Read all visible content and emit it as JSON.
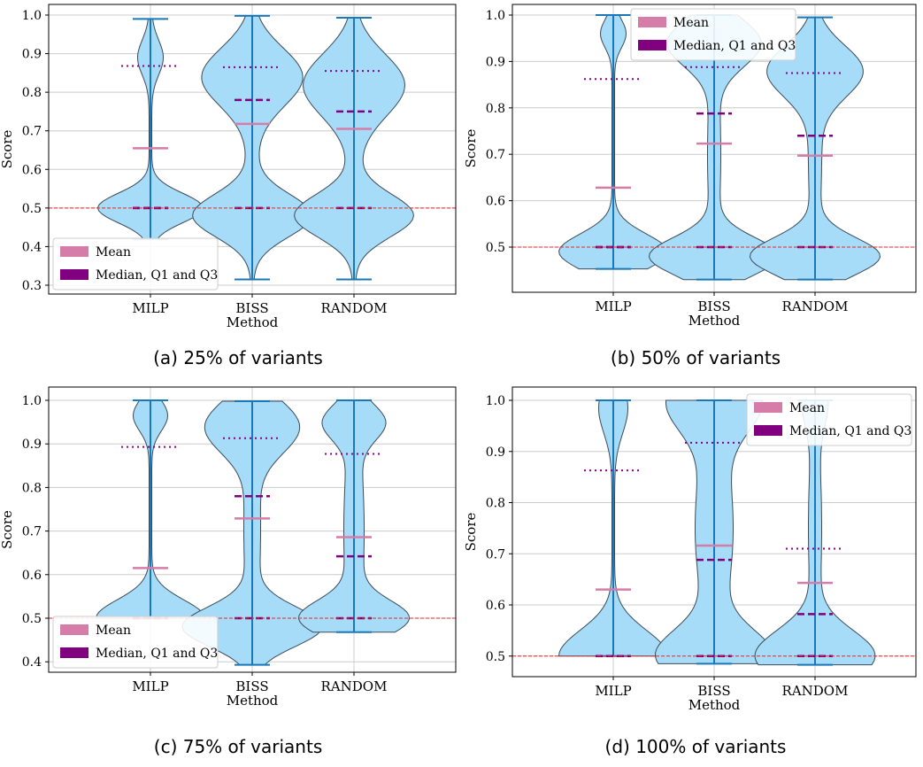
{
  "colors": {
    "violin_fill": "#a6dcf7",
    "violin_edge": "#3b4a5a",
    "whisker": "#1a78b8",
    "mean": "#d67ca8",
    "median": "#800080",
    "quartile": "#8b008b",
    "reference_line": "#e8262a",
    "grid": "#cccccc"
  },
  "chart_data": [
    {
      "type": "violin",
      "caption": "(a) 25% of variants",
      "xlabel": "Method",
      "ylabel": "Score",
      "categories": [
        "MILP",
        "BISS",
        "RANDOM"
      ],
      "ylim": [
        0.3,
        1.0
      ],
      "yticks": [
        "0.3",
        "0.4",
        "0.5",
        "0.6",
        "0.7",
        "0.8",
        "0.9",
        "1.0"
      ],
      "reference_line": 0.5,
      "grid": true,
      "legend": {
        "position": "bottom-left",
        "entries": [
          "Mean",
          "Median, Q1 and Q3"
        ]
      },
      "series": [
        {
          "category": "MILP",
          "min": 0.42,
          "max": 0.99,
          "mean": 0.655,
          "median": 0.5,
          "q1": 0.5,
          "q3": 0.868
        },
        {
          "category": "BISS",
          "min": 0.315,
          "max": 0.998,
          "mean": 0.718,
          "median": 0.78,
          "q1": 0.5,
          "q3": 0.865
        },
        {
          "category": "RANDOM",
          "min": 0.315,
          "max": 0.993,
          "mean": 0.705,
          "median": 0.75,
          "q1": 0.5,
          "q3": 0.855
        }
      ]
    },
    {
      "type": "violin",
      "caption": "(b) 50% of variants",
      "xlabel": "Method",
      "ylabel": "Score",
      "categories": [
        "MILP",
        "BISS",
        "RANDOM"
      ],
      "ylim": [
        0.4,
        1.0
      ],
      "yticks": [
        "0.5",
        "0.6",
        "0.7",
        "0.8",
        "0.9",
        "1.0"
      ],
      "reference_line": 0.5,
      "grid": true,
      "legend": {
        "position": "top-center",
        "entries": [
          "Mean",
          "Median, Q1 and Q3"
        ]
      },
      "series": [
        {
          "category": "MILP",
          "min": 0.453,
          "max": 1.0,
          "mean": 0.628,
          "median": 0.5,
          "q1": 0.5,
          "q3": 0.862
        },
        {
          "category": "BISS",
          "min": 0.43,
          "max": 1.0,
          "mean": 0.723,
          "median": 0.788,
          "q1": 0.5,
          "q3": 0.888
        },
        {
          "category": "RANDOM",
          "min": 0.43,
          "max": 0.995,
          "mean": 0.697,
          "median": 0.74,
          "q1": 0.5,
          "q3": 0.875
        }
      ]
    },
    {
      "type": "violin",
      "caption": "(c) 75% of variants",
      "xlabel": "Method",
      "ylabel": "Score",
      "categories": [
        "MILP",
        "BISS",
        "RANDOM"
      ],
      "ylim": [
        0.4,
        1.0
      ],
      "yticks": [
        "0.4",
        "0.5",
        "0.6",
        "0.7",
        "0.8",
        "0.9",
        "1.0"
      ],
      "reference_line": 0.5,
      "grid": true,
      "legend": {
        "position": "bottom-left",
        "entries": [
          "Mean",
          "Median, Q1 and Q3"
        ]
      },
      "series": [
        {
          "category": "MILP",
          "min": 0.5,
          "max": 1.0,
          "mean": 0.615,
          "median": 0.5,
          "q1": 0.5,
          "q3": 0.893
        },
        {
          "category": "BISS",
          "min": 0.393,
          "max": 0.998,
          "mean": 0.729,
          "median": 0.78,
          "q1": 0.5,
          "q3": 0.913
        },
        {
          "category": "RANDOM",
          "min": 0.468,
          "max": 1.0,
          "mean": 0.686,
          "median": 0.642,
          "q1": 0.5,
          "q3": 0.877
        }
      ]
    },
    {
      "type": "violin",
      "caption": "(d) 100% of variants",
      "xlabel": "Method",
      "ylabel": "Score",
      "categories": [
        "MILP",
        "BISS",
        "RANDOM"
      ],
      "ylim": [
        0.5,
        1.0
      ],
      "yticks": [
        "0.5",
        "0.6",
        "0.7",
        "0.8",
        "0.9",
        "1.0"
      ],
      "reference_line": 0.5,
      "grid": true,
      "legend": {
        "position": "top-right",
        "entries": [
          "Mean",
          "Median, Q1 and Q3"
        ]
      },
      "series": [
        {
          "category": "MILP",
          "min": 0.5,
          "max": 1.0,
          "mean": 0.63,
          "median": 0.5,
          "q1": 0.5,
          "q3": 0.863
        },
        {
          "category": "BISS",
          "min": 0.485,
          "max": 1.0,
          "mean": 0.716,
          "median": 0.688,
          "q1": 0.5,
          "q3": 0.917
        },
        {
          "category": "RANDOM",
          "min": 0.483,
          "max": 1.0,
          "mean": 0.643,
          "median": 0.582,
          "q1": 0.5,
          "q3": 0.71
        }
      ]
    }
  ]
}
